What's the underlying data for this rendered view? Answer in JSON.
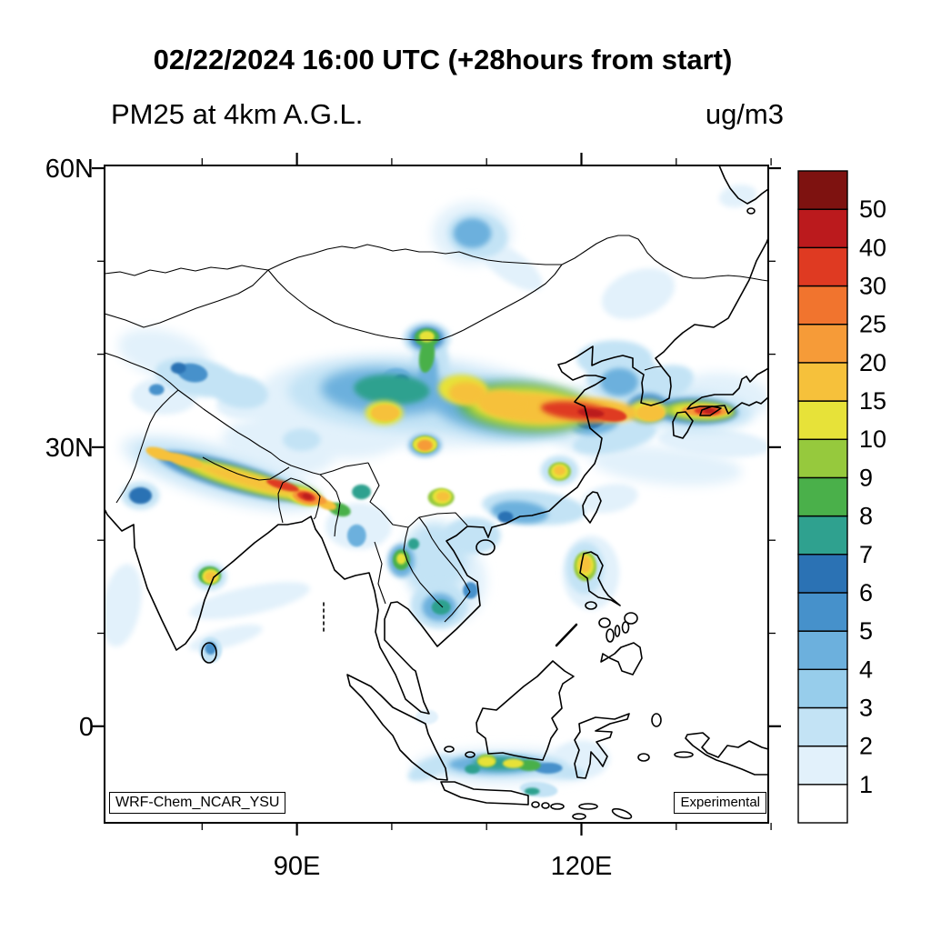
{
  "header": {
    "title": "02/22/2024 16:00 UTC (+28hours from start)",
    "subtitle_left": "PM25 at 4km A.G.L.",
    "units_label": "ug/m3"
  },
  "map": {
    "badges": {
      "model": "WRF-Chem_NCAR_YSU",
      "status": "Experimental"
    },
    "axis": {
      "lon_ticks": [
        {
          "deg": 80,
          "major": false
        },
        {
          "deg": 90,
          "label": "90E",
          "major": true
        },
        {
          "deg": 100,
          "major": false
        },
        {
          "deg": 110,
          "major": false
        },
        {
          "deg": 120,
          "label": "120E",
          "major": true
        },
        {
          "deg": 130,
          "major": false
        },
        {
          "deg": 140,
          "major": false
        }
      ],
      "lat_ticks": [
        {
          "deg": 0,
          "label": "0",
          "major": true
        },
        {
          "deg": 10,
          "major": false
        },
        {
          "deg": 20,
          "major": false
        },
        {
          "deg": 30,
          "label": "30N",
          "major": true
        },
        {
          "deg": 40,
          "major": false
        },
        {
          "deg": 50,
          "major": false
        },
        {
          "deg": 60,
          "label": "60N",
          "major": true
        }
      ]
    }
  },
  "colorbar": {
    "labels_top_to_bottom": [
      "50",
      "40",
      "30",
      "25",
      "20",
      "15",
      "10",
      "9",
      "8",
      "7",
      "6",
      "5",
      "4",
      "3",
      "2",
      "1"
    ]
  },
  "chart_data": {
    "type": "heatmap",
    "title": "PM25 at 4km A.G.L.",
    "units": "ug/m3",
    "valid_time": "02/22/2024 16:00 UTC",
    "forecast_offset": "+28hours from start",
    "model": "WRF-Chem_NCAR_YSU",
    "status": "Experimental",
    "extent": {
      "lon_min": 70,
      "lon_max": 140,
      "lat_min": -10.7,
      "lat_max": 60
    },
    "levels": [
      1,
      2,
      3,
      4,
      5,
      6,
      7,
      8,
      9,
      10,
      15,
      20,
      25,
      30,
      40,
      50
    ],
    "colors_ascending": [
      "#ffffff",
      "#e2f1fb",
      "#c3e3f5",
      "#97cdeb",
      "#6cb0dd",
      "#4691cb",
      "#2b72b4",
      "#2fa18f",
      "#4ab04a",
      "#96c93d",
      "#e7e239",
      "#f6c13b",
      "#f69b38",
      "#f1742e",
      "#df3a22",
      "#bb1a1d",
      "#7e1210"
    ],
    "feature_format": "lon,lat,rx_deg,ry_deg,rot_deg,level",
    "features": [
      [
        102,
        35,
        16,
        5,
        3,
        1.5
      ],
      [
        93,
        32.5,
        8,
        3.5,
        10,
        1.5
      ],
      [
        88,
        30,
        6,
        3,
        10,
        1.5
      ],
      [
        122,
        33,
        6,
        4,
        0,
        1.5
      ],
      [
        108.5,
        53,
        4.2,
        3.4,
        0,
        1.5
      ],
      [
        112.5,
        49.5,
        4,
        1.6,
        35,
        1.5
      ],
      [
        85,
        13.5,
        6.5,
        1.5,
        -12,
        1.5
      ],
      [
        82.5,
        9.5,
        4,
        1,
        -15,
        1.5
      ],
      [
        129,
        28,
        8,
        2,
        5,
        1.5
      ],
      [
        134,
        30.5,
        6,
        1.5,
        5,
        1.5
      ],
      [
        112,
        -4.3,
        10,
        2,
        0,
        1.5
      ],
      [
        76,
        40,
        5,
        2.5,
        15,
        1.5
      ],
      [
        126,
        46.5,
        4,
        2.5,
        -20,
        1.5
      ],
      [
        136.5,
        57,
        2,
        1.2,
        -10,
        1.5
      ],
      [
        96.5,
        21.5,
        3.5,
        2.5,
        0,
        1.5
      ],
      [
        106,
        15.5,
        4,
        4.5,
        0,
        1.5
      ],
      [
        121,
        16.5,
        3,
        4,
        0,
        1.5
      ],
      [
        71.5,
        13,
        2,
        4.5,
        10,
        1.5
      ],
      [
        76,
        35.5,
        3.5,
        2,
        0,
        1.5
      ],
      [
        84.5,
        34.5,
        3,
        1.5,
        0,
        1.5
      ],
      [
        82,
        27.2,
        11,
        3,
        16,
        1.5
      ],
      [
        123,
        24.5,
        3,
        1.5,
        -10,
        1.5
      ],
      [
        120,
        -3.5,
        3,
        2,
        0,
        1.5
      ],
      [
        135,
        35.5,
        5,
        2.5,
        5,
        1.5
      ],
      [
        103.7,
        1,
        1.2,
        0.8,
        0,
        1.5
      ],
      [
        101,
        35.5,
        12,
        3.8,
        3,
        2.5
      ],
      [
        109,
        52.8,
        3.2,
        2.4,
        10,
        2.5
      ],
      [
        103.7,
        41.7,
        2.5,
        1.8,
        0,
        2.5
      ],
      [
        112,
        34,
        9,
        3.5,
        4,
        2.5
      ],
      [
        124.5,
        37.5,
        4,
        2.5,
        0,
        2.5
      ],
      [
        131.5,
        33.8,
        6.5,
        2,
        2,
        2.5
      ],
      [
        82,
        27.2,
        9.5,
        2,
        16,
        2.5
      ],
      [
        111.5,
        -4.2,
        7,
        1.4,
        0,
        2.5
      ],
      [
        104.5,
        18,
        3.5,
        4,
        0,
        2.5
      ],
      [
        120.4,
        17,
        2,
        2.8,
        0,
        2.5
      ],
      [
        79.5,
        37.5,
        4.5,
        2,
        10,
        2.5
      ],
      [
        84,
        36,
        3,
        1.8,
        10,
        2.5
      ],
      [
        115,
        23.5,
        5.5,
        1.8,
        5,
        2.5
      ],
      [
        108.5,
        20.5,
        3,
        2,
        0,
        2.5
      ],
      [
        128,
        36.5,
        4,
        2,
        -20,
        2.5
      ],
      [
        90.5,
        30.8,
        2,
        1.2,
        0,
        2.5
      ],
      [
        123.5,
        31,
        4.5,
        1.5,
        -12,
        2.5
      ],
      [
        123.5,
        39.5,
        4,
        2,
        0,
        2.5
      ],
      [
        104,
        38.5,
        2,
        3.5,
        8,
        2.5
      ],
      [
        73.5,
        24.8,
        2,
        1.5,
        0,
        2.5
      ],
      [
        80.8,
        16.1,
        1.8,
        1.5,
        0,
        2.5
      ],
      [
        80.9,
        8.2,
        1.2,
        1.4,
        0,
        2.5
      ],
      [
        105,
        13,
        3,
        2.5,
        0,
        2.5
      ],
      [
        117.7,
        27.5,
        2,
        1.6,
        0,
        2.5
      ],
      [
        104,
        -4.5,
        2.5,
        1,
        -25,
        2.5
      ],
      [
        115.5,
        -6.8,
        2,
        0.8,
        5,
        2.5
      ],
      [
        117.5,
        -4.8,
        3,
        0.8,
        8,
        2.5
      ],
      [
        99.5,
        36,
        7,
        2.5,
        3,
        4
      ],
      [
        112.5,
        34.2,
        8,
        2.8,
        4,
        4
      ],
      [
        124,
        37,
        2,
        1.5,
        0,
        4
      ],
      [
        108.5,
        53,
        2,
        1.6,
        0,
        4
      ],
      [
        103.5,
        30.2,
        1.7,
        1.2,
        0,
        4
      ],
      [
        121.5,
        32.5,
        2.5,
        1.1,
        -10,
        4
      ],
      [
        101,
        17.8,
        1.4,
        1.8,
        0,
        4
      ],
      [
        105,
        12.8,
        1.8,
        1.5,
        0,
        4
      ],
      [
        113.5,
        23,
        3,
        1.2,
        5,
        4
      ],
      [
        103.8,
        37.5,
        1,
        2.5,
        8,
        4
      ],
      [
        96.3,
        20.5,
        1,
        1.2,
        0,
        4
      ],
      [
        100.5,
        37.5,
        1.5,
        1,
        0,
        4
      ],
      [
        111,
        -4.1,
        5,
        1,
        0,
        4
      ],
      [
        83,
        26.9,
        8,
        1.5,
        16,
        5
      ],
      [
        103.7,
        41.7,
        1.8,
        1.3,
        0,
        5
      ],
      [
        132,
        33.9,
        4.5,
        1.4,
        2,
        5
      ],
      [
        127,
        34.2,
        2.2,
        1.6,
        0,
        5
      ],
      [
        79,
        38,
        1.6,
        1,
        10,
        5
      ],
      [
        75.2,
        36.2,
        0.8,
        0.6,
        0,
        5
      ],
      [
        80.9,
        8.4,
        0.6,
        0.7,
        0,
        5
      ],
      [
        108.3,
        14.6,
        0.8,
        0.9,
        0,
        5
      ],
      [
        116.5,
        -4.5,
        1.5,
        0.6,
        0,
        5
      ],
      [
        73.5,
        24.8,
        1.2,
        0.9,
        0,
        6
      ],
      [
        77.5,
        38.5,
        0.8,
        0.6,
        0,
        6
      ],
      [
        112,
        22.5,
        0.8,
        0.6,
        0,
        6
      ],
      [
        121,
        32.8,
        1.5,
        0.8,
        -8,
        6
      ],
      [
        101,
        37.2,
        0.8,
        0.6,
        0,
        6
      ],
      [
        100,
        36.2,
        4,
        1.6,
        3,
        7
      ],
      [
        114,
        34.3,
        7,
        2.4,
        4,
        8
      ],
      [
        103.7,
        41.8,
        1.3,
        1,
        0,
        8
      ],
      [
        84,
        26.6,
        7,
        1.1,
        16,
        9
      ],
      [
        103.5,
        30.3,
        1.2,
        0.9,
        0,
        8
      ],
      [
        111.5,
        -4,
        3,
        0.7,
        0,
        7
      ],
      [
        110,
        -3.7,
        1,
        0.7,
        0,
        9
      ],
      [
        120.4,
        17.2,
        1.2,
        1.6,
        0,
        9
      ],
      [
        117.7,
        27.4,
        1.2,
        1,
        0,
        9
      ],
      [
        105.2,
        24.6,
        1.4,
        1,
        0,
        9
      ],
      [
        132.4,
        33.9,
        3.8,
        1,
        2,
        9
      ],
      [
        101,
        17.9,
        0.9,
        1.1,
        0,
        8
      ],
      [
        96.8,
        25.2,
        1,
        0.8,
        0,
        7
      ],
      [
        80.8,
        16.2,
        1.2,
        1,
        0,
        8
      ],
      [
        90.5,
        24.9,
        2.2,
        1,
        16,
        9
      ],
      [
        103.7,
        39.8,
        0.8,
        1.8,
        8,
        8
      ],
      [
        94.5,
        23.3,
        1.2,
        0.7,
        16,
        8
      ],
      [
        114.5,
        -4.2,
        1.2,
        0.6,
        0,
        8
      ],
      [
        108.5,
        -4.6,
        0.8,
        0.5,
        0,
        7
      ],
      [
        102.3,
        19.6,
        0.6,
        0.6,
        0,
        7
      ],
      [
        105.2,
        12.8,
        1,
        0.8,
        0,
        7
      ],
      [
        114.8,
        -7,
        0.8,
        0.4,
        0,
        7
      ],
      [
        99.2,
        33.7,
        1.4,
        1,
        0,
        8
      ],
      [
        114.5,
        34.3,
        6.5,
        2.1,
        4,
        12
      ],
      [
        84.5,
        26.5,
        6.3,
        0.85,
        16,
        12
      ],
      [
        103.7,
        41.9,
        0.8,
        0.6,
        0,
        10
      ],
      [
        132.7,
        33.9,
        3.2,
        0.8,
        2,
        12
      ],
      [
        127,
        33.9,
        2,
        1.2,
        0,
        12
      ],
      [
        103.5,
        30.3,
        1.3,
        0.9,
        0,
        12
      ],
      [
        105.3,
        24.7,
        1,
        0.8,
        0,
        12
      ],
      [
        117.7,
        27.4,
        0.9,
        0.8,
        0,
        12
      ],
      [
        120.4,
        17.3,
        0.9,
        1.2,
        0,
        12
      ],
      [
        80.9,
        16.1,
        0.9,
        0.8,
        0,
        12
      ],
      [
        110,
        -3.8,
        0.9,
        0.5,
        0,
        10
      ],
      [
        112.8,
        -4,
        1.1,
        0.5,
        0,
        10
      ],
      [
        90.8,
        24.7,
        1.8,
        0.9,
        16,
        12
      ],
      [
        101,
        18,
        0.5,
        0.6,
        0,
        10
      ],
      [
        107.5,
        36.2,
        2.6,
        1.6,
        4,
        10
      ],
      [
        99.2,
        33.7,
        2,
        1.3,
        0,
        12
      ],
      [
        115,
        34.2,
        5.5,
        1.6,
        4,
        17
      ],
      [
        111.5,
        34.8,
        2.5,
        1.3,
        4,
        17
      ],
      [
        121.5,
        34,
        4.5,
        1.3,
        5,
        17
      ],
      [
        85,
        26.4,
        5.5,
        0.65,
        16,
        17
      ],
      [
        78,
        28.6,
        2.2,
        0.6,
        16,
        17
      ],
      [
        75.5,
        29.3,
        1.5,
        0.6,
        18,
        17
      ],
      [
        99.3,
        33.7,
        1.5,
        0.9,
        0,
        17
      ],
      [
        103.5,
        30.2,
        0.8,
        0.6,
        0,
        20
      ],
      [
        133,
        33.9,
        2.4,
        0.6,
        2,
        20
      ],
      [
        127.3,
        33.7,
        1.5,
        0.9,
        0,
        17
      ],
      [
        120.4,
        17.4,
        0.6,
        0.9,
        0,
        17
      ],
      [
        80.9,
        16.1,
        0.6,
        0.5,
        0,
        17
      ],
      [
        90.9,
        24.6,
        1.4,
        0.7,
        16,
        20
      ],
      [
        105.4,
        24.7,
        0.7,
        0.5,
        0,
        17
      ],
      [
        117.7,
        27.5,
        0.6,
        0.5,
        0,
        17
      ],
      [
        91.5,
        24.6,
        1.7,
        0.6,
        16,
        22
      ],
      [
        93.2,
        23.8,
        1,
        0.5,
        16,
        17
      ],
      [
        108,
        35.8,
        2,
        1.2,
        4,
        15
      ],
      [
        119.5,
        33.9,
        3.8,
        0.95,
        6,
        33
      ],
      [
        123,
        33.5,
        1.8,
        0.7,
        8,
        33
      ],
      [
        88.5,
        25.9,
        1.8,
        0.45,
        16,
        33
      ],
      [
        91,
        24.7,
        1,
        0.45,
        16,
        33
      ],
      [
        133.3,
        33.9,
        1.4,
        0.45,
        2,
        33
      ],
      [
        121,
        33.7,
        1.4,
        0.45,
        6,
        45
      ],
      [
        91.1,
        24.7,
        0.55,
        0.3,
        16,
        45
      ],
      [
        133.5,
        33.9,
        0.6,
        0.3,
        2,
        45
      ]
    ]
  }
}
